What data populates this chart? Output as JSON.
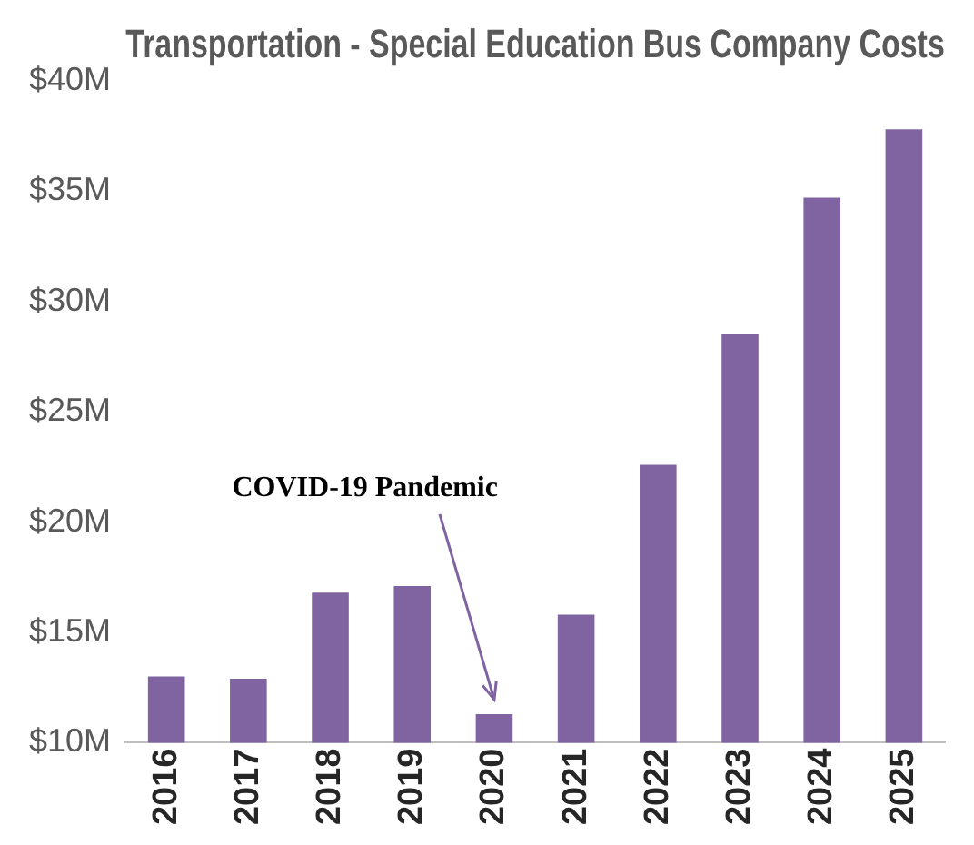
{
  "chart_data": {
    "type": "bar",
    "title": "Transportation - Special Education Bus Company Costs",
    "categories": [
      "2016",
      "2017",
      "2018",
      "2019",
      "2020",
      "2021",
      "2022",
      "2023",
      "2024",
      "2025"
    ],
    "values": [
      13.0,
      12.9,
      16.8,
      17.1,
      11.3,
      15.8,
      22.6,
      28.5,
      34.7,
      37.8
    ],
    "color": "#8064a2",
    "ylim": [
      10,
      40
    ],
    "yticks": [
      {
        "value": 10,
        "label": "$10M"
      },
      {
        "value": 15,
        "label": "$15M"
      },
      {
        "value": 20,
        "label": "$20M"
      },
      {
        "value": 25,
        "label": "$25M"
      },
      {
        "value": 30,
        "label": "$30M"
      },
      {
        "value": 35,
        "label": "$35M"
      },
      {
        "value": 40,
        "label": "$40M"
      }
    ],
    "grid": false,
    "legend": false,
    "annotations": [
      {
        "text": "COVID-19 Pandemic",
        "x": "2020",
        "y": 11.3
      }
    ]
  }
}
